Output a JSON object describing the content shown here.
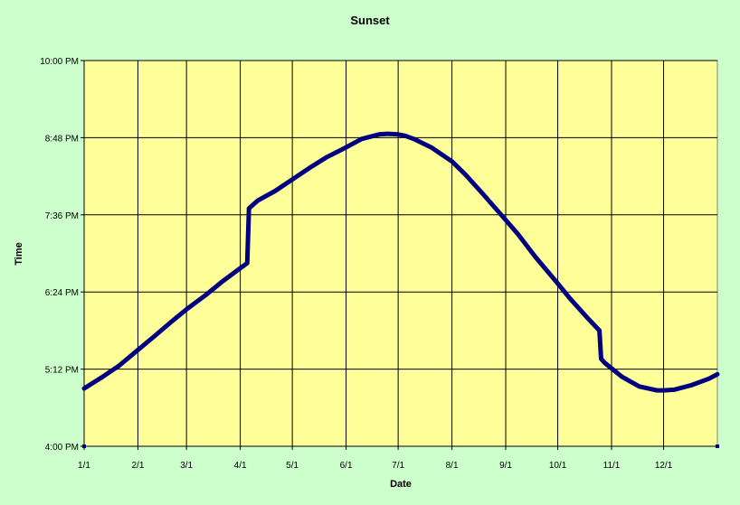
{
  "chart_data": {
    "type": "line",
    "title": "Sunset",
    "xlabel": "Date",
    "ylabel": "Time",
    "x_ticks": [
      "1/1",
      "2/1",
      "3/1",
      "4/1",
      "5/1",
      "6/1",
      "7/1",
      "8/1",
      "9/1",
      "10/1",
      "11/1",
      "12/1"
    ],
    "x_tick_days": [
      0,
      31,
      59,
      90,
      120,
      151,
      181,
      212,
      243,
      273,
      304,
      334
    ],
    "xlim_days": [
      0,
      365
    ],
    "y_ticks": [
      "4:00 PM",
      "5:12 PM",
      "6:24 PM",
      "7:36 PM",
      "8:48 PM",
      "10:00 PM"
    ],
    "ylim_hours": [
      16.0,
      22.0
    ],
    "grid": true,
    "colors": {
      "background": "#CCFFCC",
      "plot_area": "#FFFF99",
      "line": "#000080",
      "grid": "#000000"
    },
    "series": [
      {
        "x_days": [
          0,
          10,
          20,
          31,
          40,
          50,
          59,
          70,
          80,
          90,
          94,
          95,
          100,
          110,
          120,
          130,
          140,
          151,
          160,
          170,
          175,
          181,
          185,
          190,
          200,
          212,
          220,
          230,
          243,
          250,
          260,
          273,
          280,
          290,
          297,
          298,
          300,
          310,
          320,
          330,
          334,
          340,
          350,
          360,
          365
        ],
        "y_hours": [
          16.9,
          17.07,
          17.25,
          17.5,
          17.7,
          17.93,
          18.13,
          18.35,
          18.57,
          18.77,
          18.85,
          19.7,
          19.82,
          19.97,
          20.15,
          20.33,
          20.5,
          20.65,
          20.78,
          20.85,
          20.86,
          20.85,
          20.83,
          20.78,
          20.65,
          20.43,
          20.22,
          19.92,
          19.52,
          19.3,
          18.95,
          18.53,
          18.3,
          18.0,
          17.8,
          17.36,
          17.3,
          17.08,
          16.93,
          16.87,
          16.87,
          16.88,
          16.95,
          17.05,
          17.12
        ]
      }
    ]
  }
}
